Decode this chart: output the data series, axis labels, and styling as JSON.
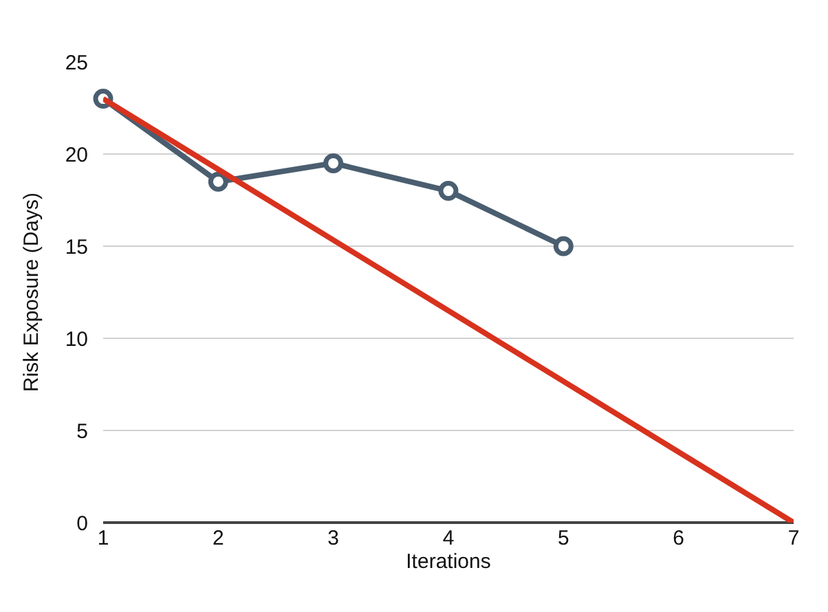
{
  "chart_data": {
    "type": "line",
    "xlabel": "Iterations",
    "ylabel": "Risk Exposure (Days)",
    "x": [
      1,
      2,
      3,
      4,
      5
    ],
    "series": [
      {
        "color": "#4a5e70",
        "values": [
          23,
          18.5,
          19.5,
          18,
          15
        ],
        "marker": "circle"
      },
      {
        "type": "line",
        "color": "#d8321e",
        "x": [
          1,
          7
        ],
        "values": [
          23,
          0
        ],
        "marker": "none"
      }
    ],
    "xlim": [
      1,
      7
    ],
    "xticks": [
      1,
      2,
      3,
      4,
      5,
      6,
      7
    ],
    "ylim": [
      0,
      25
    ],
    "yticks": [
      0,
      5,
      10,
      15,
      20,
      25
    ],
    "grid": "y",
    "line_style": "solid"
  }
}
